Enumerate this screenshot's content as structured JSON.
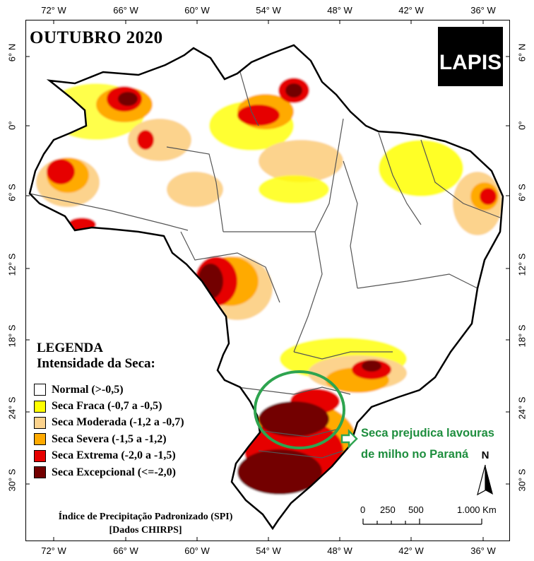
{
  "map": {
    "title": "OUTUBRO 2020",
    "logo": "LAPIS",
    "longitude_labels": [
      "72° W",
      "66° W",
      "60° W",
      "54° W",
      "48° W",
      "42° W",
      "36° W"
    ],
    "latitude_labels": [
      "6° N",
      "0°",
      "6° S",
      "12° S",
      "18° S",
      "24° S",
      "30° S"
    ],
    "legend": {
      "heading": "LEGENDA",
      "subheading": "Intensidade da Seca:",
      "items": [
        {
          "label": "Normal (>-0,5)",
          "color": "#ffffff"
        },
        {
          "label": "Seca Fraca (-0,7 a -0,5)",
          "color": "#ffff00"
        },
        {
          "label": "Seca Moderada (-1,2 a -0,7)",
          "color": "#fcd38d"
        },
        {
          "label": "Seca Severa (-1,5 a -1,2)",
          "color": "#ffaa00"
        },
        {
          "label": "Seca Extrema (-2,0 a -1,5)",
          "color": "#e60000"
        },
        {
          "label": "Seca Excepcional (<=-2,0)",
          "color": "#730000"
        }
      ]
    },
    "source_line1": "Índice de Precipitação Padronizado (SPI)",
    "source_line2": "[Dados CHIRPS]",
    "annotation_line1": "Seca prejudica lavouras",
    "annotation_line2": "de milho no Paraná",
    "annotation_color": "#1e8e3e",
    "north_label": "N",
    "scale_labels": [
      "0",
      "250",
      "500",
      "1.000 Km"
    ]
  }
}
